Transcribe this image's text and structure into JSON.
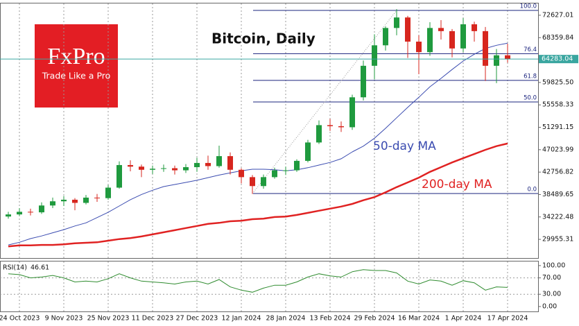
{
  "chart_data": {
    "type": "candlestick",
    "title": "Bitcoin, Daily",
    "logo": {
      "brand": "FxPro",
      "tagline": "Trade Like a Pro"
    },
    "categories": [
      null,
      "24 Oct 2023",
      null,
      null,
      null,
      "9 Nov 2023",
      null,
      null,
      null,
      "25 Nov 2023",
      null,
      null,
      null,
      "11 Dec 2023",
      null,
      null,
      null,
      "27 Dec 2023",
      null,
      null,
      null,
      "12 Jan 2024",
      null,
      null,
      null,
      "28 Jan 2024",
      null,
      null,
      null,
      "13 Feb 2024",
      null,
      null,
      null,
      "29 Feb 2024",
      null,
      null,
      null,
      "16 Mar 2024",
      null,
      null,
      null,
      "1 Apr 2024",
      null,
      null,
      null,
      "17 Apr 2024"
    ],
    "open": [
      34300,
      34700,
      35200,
      35100,
      36400,
      37200,
      37500,
      36900,
      37900,
      37800,
      39800,
      44100,
      43800,
      43200,
      43400,
      43500,
      43100,
      43700,
      44500,
      43900,
      45800,
      43200,
      41800,
      40100,
      41800,
      43100,
      43100,
      44900,
      48400,
      51700,
      51500,
      51300,
      57000,
      63000,
      66900,
      70200,
      72200,
      67600,
      65600,
      70200,
      69600,
      66300,
      70900,
      69600,
      63000,
      65000
    ],
    "high": [
      35200,
      35900,
      35800,
      37000,
      37900,
      38200,
      37800,
      38400,
      38600,
      40300,
      44800,
      45000,
      44200,
      44000,
      44200,
      44000,
      44300,
      45500,
      45900,
      47800,
      46500,
      43500,
      42200,
      42300,
      43600,
      43800,
      45200,
      48900,
      52600,
      52900,
      52400,
      57500,
      64000,
      69000,
      70500,
      73800,
      72500,
      68800,
      71300,
      71700,
      70000,
      72100,
      71400,
      70400,
      66200,
      67200
    ],
    "low": [
      33900,
      34400,
      34500,
      34800,
      35900,
      36300,
      35500,
      36600,
      37100,
      37500,
      39600,
      42900,
      41800,
      42400,
      42800,
      42300,
      42600,
      42800,
      43200,
      43600,
      42300,
      40600,
      38600,
      39600,
      41500,
      42200,
      42800,
      44600,
      48100,
      50600,
      50400,
      50800,
      56400,
      60400,
      65900,
      68800,
      64500,
      61400,
      64900,
      68000,
      64600,
      65600,
      67600,
      60100,
      59700,
      63600
    ],
    "close": [
      34700,
      35200,
      35100,
      36400,
      37200,
      37500,
      36900,
      37900,
      37800,
      39800,
      44100,
      43800,
      43200,
      43400,
      43500,
      43100,
      43700,
      44500,
      43900,
      45800,
      43200,
      41800,
      40100,
      41800,
      43100,
      43100,
      44900,
      48400,
      51700,
      51500,
      51300,
      57000,
      63000,
      66900,
      70200,
      72200,
      67600,
      65600,
      70200,
      69600,
      66300,
      70900,
      69600,
      63000,
      65000,
      64283.04
    ],
    "colors": {
      "up": "#1f9a3e",
      "down": "#d7261e",
      "last": "#3aa6a0"
    },
    "ylim": [
      26399,
      74866
    ],
    "yticks": [
      72627.01,
      68359.84,
      {
        "value": 59825.5,
        "label": "59825.50"
      },
      55558.33,
      51291.15,
      47023.99,
      42756.82,
      38489.65,
      34222.48,
      29955.31
    ],
    "grid": true,
    "series": [
      {
        "name": "50-day MA",
        "color": "#3a4bb0",
        "values": [
          28900,
          29400,
          30100,
          30600,
          31200,
          31800,
          32500,
          33100,
          34100,
          35100,
          36300,
          37500,
          38500,
          39300,
          40000,
          40400,
          40800,
          41200,
          41700,
          42200,
          42600,
          43000,
          43300,
          43300,
          43200,
          43000,
          43200,
          43600,
          44100,
          44600,
          45300,
          46600,
          47700,
          49200,
          51100,
          53100,
          55100,
          57000,
          59000,
          60600,
          62300,
          63900,
          65200,
          66300,
          66900,
          67300
        ]
      },
      {
        "name": "200-day MA",
        "color": "#e02222",
        "values": [
          28600,
          28800,
          28800,
          28900,
          28900,
          29000,
          29200,
          29300,
          29400,
          29700,
          30000,
          30200,
          30500,
          30900,
          31300,
          31700,
          32100,
          32500,
          32900,
          33100,
          33400,
          33500,
          33800,
          33900,
          34200,
          34300,
          34600,
          35000,
          35400,
          35800,
          36200,
          36700,
          37400,
          38000,
          38900,
          39900,
          40800,
          41700,
          42800,
          43700,
          44600,
          45400,
          46200,
          47000,
          47700,
          48200
        ]
      }
    ],
    "fibonacci": {
      "color": "#1a237e",
      "levels": [
        {
          "value": 100,
          "label": "100.0"
        },
        76.4,
        61.8,
        {
          "value": 50,
          "label": "50.0"
        },
        {
          "value": 0,
          "label": "0.0"
        }
      ],
      "prices": [
        73545,
        65316,
        60225,
        56111,
        38677
      ]
    },
    "indicator": {
      "name": "RSI(14)",
      "color": "#2e8b2e",
      "values": [
        80,
        78,
        70,
        72,
        76,
        70,
        60,
        62,
        60,
        68,
        80,
        70,
        62,
        60,
        58,
        55,
        60,
        62,
        55,
        66,
        48,
        40,
        35,
        45,
        52,
        52,
        60,
        72,
        80,
        75,
        72,
        85,
        90,
        88,
        88,
        82,
        62,
        55,
        65,
        62,
        52,
        63,
        58,
        40,
        48,
        46.61
      ],
      "ylim": [
        -12,
        110
      ],
      "yticks": [
        {
          "value": 100,
          "label": "100.00"
        },
        {
          "value": 70,
          "label": "70.00"
        },
        {
          "value": 30,
          "label": "30.00"
        },
        {
          "value": 0,
          "label": "0.00"
        }
      ]
    }
  }
}
